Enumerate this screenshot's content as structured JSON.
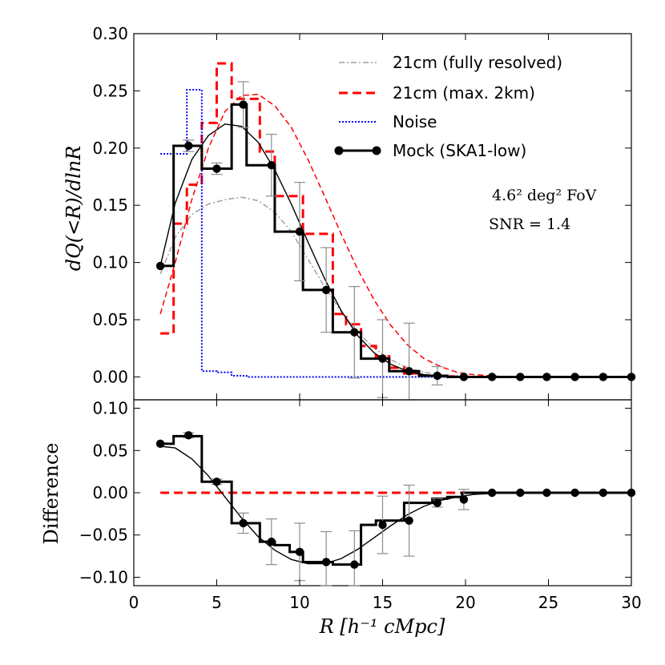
{
  "chart_data": [
    {
      "type": "line",
      "panel": "top",
      "ylabel": "dQ(<R)/dlnR",
      "xlim": [
        0,
        30
      ],
      "ylim": [
        -0.02,
        0.3
      ],
      "xticks": [
        0,
        5,
        10,
        15,
        20,
        25,
        30
      ],
      "yticks": [
        0.0,
        0.05,
        0.1,
        0.15,
        0.2,
        0.25,
        0.3
      ],
      "ytick_labels": [
        "0.00",
        "0.05",
        "0.10",
        "0.15",
        "0.20",
        "0.25",
        "0.30"
      ],
      "bin_edges": [
        1.6,
        2.4,
        3.2,
        4.1,
        5.0,
        5.9,
        6.8,
        7.6,
        8.5,
        9.4,
        10.2,
        11.1,
        12.0,
        12.8,
        13.7,
        14.6,
        15.4,
        16.3,
        17.2,
        18.0,
        18.9,
        19.8,
        20.7,
        21.5,
        22.4,
        23.3,
        24.1,
        25.0,
        25.9,
        26.8,
        27.6,
        28.5,
        29.4,
        30.0
      ],
      "annotations": [
        "4.6² deg² FoV",
        "SNR = 1.4"
      ],
      "legend": [
        "21cm (fully resolved)",
        "21cm (max. 2km)",
        "Noise",
        "Mock (SKA1-low)"
      ],
      "series": [
        {
          "name": "21cm (fully resolved)",
          "style": "dashdot",
          "color": "#a0a0a0",
          "x": [
            1.6,
            2.5,
            3.5,
            4.5,
            5.5,
            6.5,
            7.5,
            8.5,
            9.5,
            10.5,
            11.5,
            12.5,
            13.5,
            14.5,
            15.5,
            16.5,
            17.5,
            18.5,
            19.5,
            20.5,
            21.5,
            22.5,
            24,
            26,
            28,
            30
          ],
          "y": [
            0.09,
            0.122,
            0.142,
            0.151,
            0.155,
            0.157,
            0.154,
            0.144,
            0.127,
            0.103,
            0.079,
            0.057,
            0.039,
            0.025,
            0.015,
            0.008,
            0.004,
            0.002,
            0.001,
            0.0005,
            0.0002,
            0.0,
            0.0,
            0.0,
            0.0,
            0.0
          ]
        },
        {
          "name": "21cm (max. 2km) smooth",
          "style": "dashed-thin",
          "color": "#ff0000",
          "x": [
            1.6,
            2.5,
            3.5,
            4.5,
            5.5,
            6.5,
            7.5,
            8.5,
            9.5,
            10.5,
            11.5,
            12.5,
            13.5,
            14.5,
            15.5,
            16.5,
            17.5,
            18.5,
            19.5,
            20.5,
            21.5,
            22.5,
            24,
            26,
            28,
            30
          ],
          "y": [
            0.055,
            0.1,
            0.155,
            0.2,
            0.232,
            0.246,
            0.247,
            0.237,
            0.218,
            0.19,
            0.158,
            0.125,
            0.094,
            0.067,
            0.045,
            0.028,
            0.016,
            0.009,
            0.004,
            0.002,
            0.001,
            0.0,
            0.0,
            0.0,
            0.0,
            0.0
          ]
        },
        {
          "name": "21cm (max. 2km)",
          "style": "dashed-step",
          "color": "#ff0000",
          "values": [
            0.038,
            0.134,
            0.168,
            0.222,
            0.274,
            0.243,
            0.243,
            0.197,
            0.158,
            0.158,
            0.125,
            0.125,
            0.055,
            0.046,
            0.027,
            0.018,
            0.008,
            0.003,
            0.001,
            0.0005,
            0.0002,
            0.0,
            0.0,
            0.0,
            0.0,
            0.0,
            0.0,
            0.0,
            0.0,
            0.0,
            0.0,
            0.0,
            0.0
          ]
        },
        {
          "name": "Noise",
          "style": "dotted-step",
          "color": "#0000ff",
          "values": [
            0.195,
            0.195,
            0.251,
            0.005,
            0.004,
            0.001,
            0.0,
            0.0,
            0.0,
            0.0,
            0.0,
            0.0,
            0.0,
            0.0,
            0.0,
            0.0,
            0.0,
            0.0,
            0.0,
            0.0,
            0.0,
            0.0,
            0.0,
            0.0,
            0.0,
            0.0,
            0.0,
            0.0,
            0.0,
            0.0,
            0.0,
            0.0,
            0.0
          ]
        },
        {
          "name": "Mock (SKA1-low)",
          "style": "solid-step",
          "color": "#000000",
          "values": [
            0.097,
            0.202,
            0.202,
            0.182,
            0.182,
            0.238,
            0.185,
            0.185,
            0.127,
            0.127,
            0.076,
            0.076,
            0.039,
            0.039,
            0.016,
            0.016,
            0.005,
            0.005,
            0.001,
            0.001,
            0.0,
            0.0,
            0.0,
            0.0,
            0.0,
            0.0,
            0.0,
            0.0,
            0.0,
            0.0,
            0.0,
            0.0,
            0.0
          ]
        },
        {
          "name": "Mock fit",
          "style": "solid-thin",
          "color": "#000000",
          "x": [
            1.6,
            2.5,
            3.5,
            4.5,
            5.5,
            6.5,
            7.5,
            8.5,
            9.5,
            10.5,
            11.5,
            12.5,
            13.5,
            14.5,
            15.5,
            16.5,
            17.5,
            18.5,
            19.5,
            20.5,
            21.5,
            22.5,
            24,
            26,
            28,
            30
          ],
          "y": [
            0.097,
            0.152,
            0.19,
            0.211,
            0.221,
            0.219,
            0.205,
            0.181,
            0.151,
            0.118,
            0.086,
            0.058,
            0.036,
            0.021,
            0.011,
            0.005,
            0.002,
            0.001,
            0.0,
            0.0,
            0.0,
            0.0,
            0.0,
            0.0,
            0.0,
            0.0
          ]
        }
      ],
      "points": {
        "name": "Mock (SKA1-low)",
        "x": [
          1.6,
          3.3,
          5.0,
          6.6,
          8.3,
          10.0,
          11.6,
          13.3,
          15.0,
          16.6,
          18.3,
          19.9,
          21.6,
          23.3,
          24.9,
          26.6,
          28.3,
          30.0
        ],
        "y": [
          0.097,
          0.202,
          0.182,
          0.238,
          0.185,
          0.127,
          0.076,
          0.039,
          0.016,
          0.005,
          0.001,
          0.0,
          0.0,
          0.0,
          0.0,
          0.0,
          0.0,
          0.0
        ],
        "err": [
          0.0,
          0.005,
          0.005,
          0.02,
          0.027,
          0.043,
          0.037,
          0.04,
          0.034,
          0.042,
          0.008,
          0.0,
          0.0,
          0.0,
          0.0,
          0.0,
          0.0,
          0.0
        ]
      }
    },
    {
      "type": "line",
      "panel": "bottom",
      "xlabel": "R [h⁻¹ cMpc]",
      "ylabel": "Difference",
      "xlim": [
        0,
        30
      ],
      "ylim": [
        -0.11,
        0.11
      ],
      "xticks": [
        0,
        5,
        10,
        15,
        20,
        25,
        30
      ],
      "xtick_labels": [
        "0",
        "5",
        "10",
        "15",
        "20",
        "25",
        "30"
      ],
      "yticks": [
        -0.1,
        -0.05,
        0.0,
        0.05,
        0.1
      ],
      "ytick_labels": [
        "−0.10",
        "−0.05",
        "0.00",
        "0.05",
        "0.10"
      ],
      "series": [
        {
          "name": "zero line",
          "style": "dashed",
          "color": "#ff0000",
          "x": [
            1.6,
            20.7
          ],
          "y": [
            0.0,
            0.0
          ]
        },
        {
          "name": "Difference",
          "style": "solid-step",
          "color": "#000000",
          "values": [
            0.058,
            0.067,
            0.067,
            0.013,
            0.013,
            -0.036,
            -0.036,
            -0.058,
            -0.062,
            -0.07,
            -0.082,
            -0.082,
            -0.085,
            -0.085,
            -0.038,
            -0.033,
            -0.033,
            -0.012,
            -0.012,
            -0.007,
            -0.005,
            0.0,
            0.0,
            0.0,
            0.0,
            0.0,
            0.0,
            0.0,
            0.0,
            0.0,
            0.0,
            0.0,
            0.0
          ]
        },
        {
          "name": "Difference fit",
          "style": "solid-thin",
          "color": "#000000",
          "x": [
            1.6,
            2.5,
            3.5,
            4.5,
            5.5,
            6.5,
            7.5,
            8.5,
            9.5,
            10.5,
            11.5,
            12.5,
            13.5,
            14.5,
            15.5,
            16.5,
            17.5,
            18.5,
            19.5,
            20.5,
            21.5,
            22.5,
            24,
            26,
            28,
            30
          ],
          "y": [
            0.055,
            0.053,
            0.04,
            0.02,
            -0.005,
            -0.03,
            -0.052,
            -0.068,
            -0.079,
            -0.084,
            -0.084,
            -0.078,
            -0.067,
            -0.053,
            -0.039,
            -0.026,
            -0.016,
            -0.009,
            -0.005,
            -0.002,
            -0.001,
            0.0,
            0.0,
            0.0,
            0.0,
            0.0
          ]
        }
      ],
      "points": {
        "name": "Difference points",
        "x": [
          1.6,
          3.3,
          5.0,
          6.6,
          8.3,
          10.0,
          11.6,
          13.3,
          15.0,
          16.6,
          18.3,
          19.9,
          21.6,
          23.3,
          24.9,
          26.6,
          28.3,
          30.0
        ],
        "y": [
          0.058,
          0.068,
          0.013,
          -0.036,
          -0.058,
          -0.07,
          -0.082,
          -0.085,
          -0.038,
          -0.033,
          -0.012,
          -0.008,
          0.0,
          0.0,
          0.0,
          0.0,
          0.0,
          0.0
        ],
        "err": [
          0.0,
          0.003,
          0.003,
          0.012,
          0.027,
          0.034,
          0.036,
          0.04,
          0.034,
          0.042,
          0.005,
          0.012,
          0.0,
          0.0,
          0.0,
          0.0,
          0.0,
          0.0
        ]
      }
    }
  ]
}
